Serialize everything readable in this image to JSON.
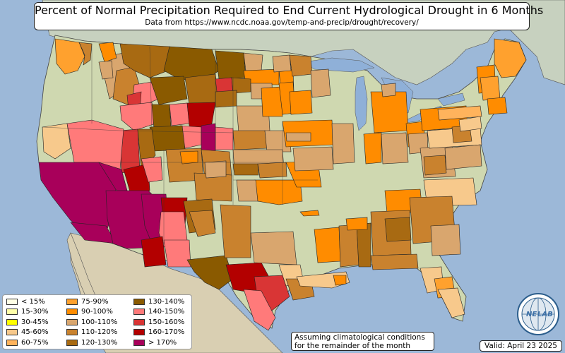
{
  "title": {
    "main": "Percent of Normal Precipitation Required to End Current Hydrological Drought in 6 Months",
    "subtitle": "Data from https://www.ncdc.noaa.gov/temp-and-precip/drought/recovery/"
  },
  "legend": {
    "items": [
      {
        "label": "< 15%",
        "color": "#ffffe6"
      },
      {
        "label": "15-30%",
        "color": "#ffffa8"
      },
      {
        "label": "30-45%",
        "color": "#ffff00"
      },
      {
        "label": "45-60%",
        "color": "#f7c98c"
      },
      {
        "label": "60-75%",
        "color": "#ffb35c"
      },
      {
        "label": "75-90%",
        "color": "#ffa12e"
      },
      {
        "label": "90-100%",
        "color": "#ff8c00"
      },
      {
        "label": "100-110%",
        "color": "#d9a66e"
      },
      {
        "label": "110-120%",
        "color": "#c9822e"
      },
      {
        "label": "120-130%",
        "color": "#a86a12"
      },
      {
        "label": "130-140%",
        "color": "#8a5a00"
      },
      {
        "label": "140-150%",
        "color": "#ff7a7a"
      },
      {
        "label": "150-160%",
        "color": "#d93535"
      },
      {
        "label": "160-170%",
        "color": "#b30000"
      },
      {
        "label": "> 170%",
        "color": "#a8005a"
      }
    ]
  },
  "note": {
    "line1": "Assuming climatological conditions",
    "line2": "for the remainder of the month"
  },
  "valid_date": "Valid: April 23 2025",
  "logo": {
    "text_left": "NE",
    "text_right": "LAB",
    "icon": "globe-logo-icon"
  },
  "colors": {
    "ocean": "#9cb8d8",
    "land": "#cfd8b0",
    "mexico_land": "#d8cfb0",
    "canada_land": "#c8d2c0",
    "great_lakes": "#8fb0d8"
  }
}
